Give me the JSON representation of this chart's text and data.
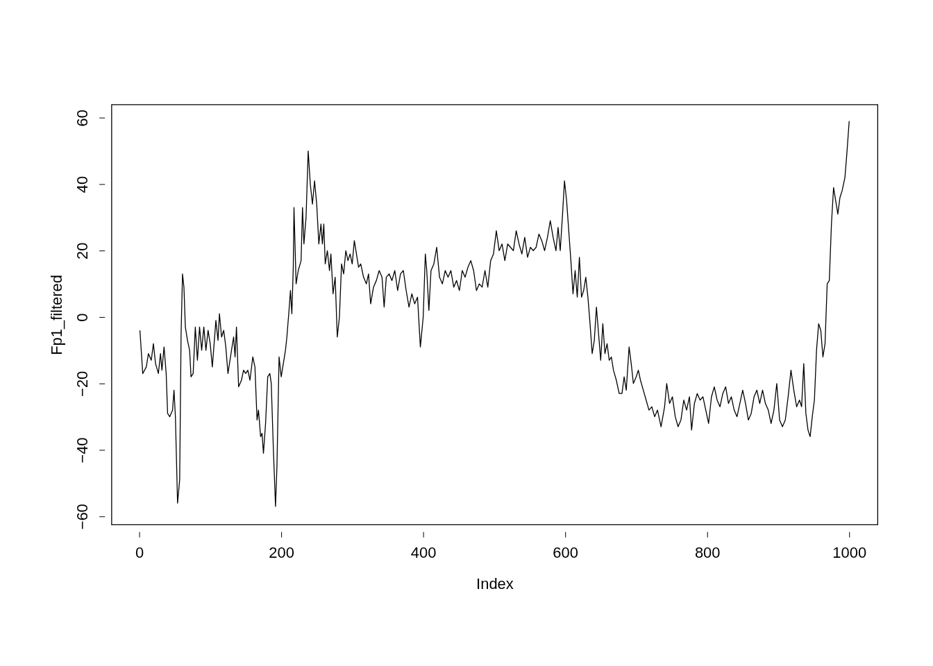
{
  "chart_data": {
    "type": "line",
    "xlabel": "Index",
    "ylabel": "Fp1_filtered",
    "xlim": [
      -39,
      1040
    ],
    "ylim": [
      -62.5,
      64
    ],
    "xticks": [
      0,
      200,
      400,
      600,
      800,
      1000
    ],
    "yticks": [
      -60,
      -40,
      -20,
      0,
      20,
      40,
      60
    ],
    "grid": false,
    "legend": false,
    "marker": "none",
    "line_style": "solid",
    "series": [
      {
        "color": "#000000",
        "x": [
          1,
          5,
          10,
          13,
          17,
          20,
          23,
          27,
          30,
          32,
          35,
          38,
          40,
          43,
          47,
          49,
          51,
          54,
          57,
          59,
          61,
          63,
          65,
          68,
          71,
          73,
          76,
          79,
          82,
          85,
          88,
          91,
          94,
          97,
          100,
          103,
          108,
          111,
          113,
          116,
          119,
          122,
          125,
          130,
          133,
          135,
          137,
          140,
          144,
          147,
          150,
          153,
          156,
          160,
          163,
          166,
          168,
          171,
          173,
          175,
          178,
          181,
          184,
          186,
          189,
          192,
          194,
          197,
          200,
          203,
          206,
          208,
          211,
          213,
          215,
          217,
          218,
          221,
          224,
          228,
          230,
          232,
          235,
          238,
          241,
          244,
          247,
          250,
          253,
          256,
          258,
          260,
          262,
          265,
          268,
          270,
          273,
          276,
          279,
          282,
          285,
          288,
          291,
          294,
          297,
          300,
          303,
          306,
          309,
          312,
          316,
          320,
          323,
          326,
          330,
          334,
          338,
          342,
          345,
          348,
          352,
          356,
          360,
          364,
          368,
          372,
          376,
          380,
          384,
          388,
          392,
          396,
          400,
          403,
          405,
          408,
          411,
          415,
          419,
          423,
          427,
          431,
          435,
          439,
          443,
          447,
          451,
          455,
          459,
          463,
          467,
          471,
          475,
          479,
          483,
          487,
          491,
          495,
          499,
          503,
          507,
          511,
          515,
          519,
          523,
          527,
          531,
          535,
          539,
          543,
          547,
          551,
          555,
          559,
          563,
          567,
          571,
          575,
          579,
          583,
          587,
          590,
          593,
          596,
          599,
          602,
          605,
          608,
          611,
          614,
          617,
          620,
          623,
          626,
          629,
          632,
          635,
          638,
          641,
          644,
          647,
          650,
          653,
          656,
          659,
          662,
          665,
          668,
          672,
          676,
          680,
          683,
          686,
          690,
          693,
          696,
          700,
          703,
          706,
          710,
          714,
          718,
          722,
          726,
          730,
          735,
          740,
          743,
          747,
          751,
          755,
          759,
          763,
          767,
          771,
          775,
          778,
          782,
          786,
          790,
          794,
          798,
          802,
          806,
          810,
          814,
          818,
          822,
          826,
          830,
          834,
          838,
          842,
          846,
          850,
          854,
          858,
          862,
          866,
          870,
          874,
          878,
          882,
          886,
          890,
          894,
          898,
          902,
          906,
          910,
          914,
          918,
          922,
          926,
          930,
          933,
          936,
          939,
          942,
          945,
          948,
          951,
          954,
          957,
          960,
          963,
          966,
          969,
          972,
          975,
          978,
          981,
          984,
          987,
          990,
          994,
          997,
          1000
        ],
        "values": [
          -4,
          -17,
          -15,
          -11,
          -13,
          -8,
          -14,
          -17,
          -11,
          -16,
          -9,
          -17,
          -29,
          -30,
          -28,
          -22,
          -30,
          -56,
          -49,
          -5,
          13,
          9,
          -3,
          -7,
          -10,
          -18,
          -17,
          -3,
          -13,
          -3,
          -10,
          -3,
          -10,
          -4,
          -8,
          -15,
          -1,
          -7,
          1,
          -6,
          -4,
          -9,
          -17,
          -10,
          -6,
          -12,
          -3,
          -21,
          -19,
          -16,
          -17,
          -16,
          -19,
          -12,
          -15,
          -31,
          -28,
          -36,
          -35,
          -41,
          -32,
          -18,
          -17,
          -20,
          -40,
          -57,
          -45,
          -12,
          -18,
          -14,
          -10,
          -6,
          2,
          8,
          1,
          15,
          33,
          10,
          14,
          17,
          33,
          22,
          30,
          50,
          40,
          34,
          41,
          34,
          22,
          28,
          22,
          28,
          16,
          20,
          14,
          19,
          7,
          12,
          -6,
          0,
          16,
          13,
          20,
          17,
          19,
          16,
          23,
          19,
          15,
          16,
          12,
          10,
          13,
          4,
          9,
          11,
          14,
          12,
          3,
          12,
          13,
          11,
          14,
          8,
          13,
          14,
          8,
          3,
          7,
          4,
          6,
          -9,
          0,
          19,
          14,
          2,
          14,
          16,
          21,
          12,
          10,
          14,
          12,
          14,
          9,
          11,
          8,
          14,
          12,
          15,
          17,
          14,
          8,
          10,
          9,
          14,
          9,
          17,
          19,
          26,
          20,
          22,
          17,
          22,
          21,
          20,
          26,
          22,
          19,
          24,
          18,
          21,
          20,
          21,
          25,
          23,
          20,
          24,
          29,
          24,
          20,
          27,
          20,
          30,
          41,
          35,
          26,
          17,
          7,
          14,
          6,
          18,
          6,
          8,
          12,
          6,
          -2,
          -11,
          -7,
          3,
          -5,
          -13,
          -2,
          -11,
          -8,
          -13,
          -12,
          -16,
          -19,
          -23,
          -23,
          -18,
          -22,
          -9,
          -14,
          -20,
          -18,
          -16,
          -19,
          -22,
          -25,
          -28,
          -27,
          -30,
          -28,
          -33,
          -27,
          -20,
          -26,
          -24,
          -30,
          -33,
          -31,
          -25,
          -28,
          -24,
          -34,
          -26,
          -23,
          -25,
          -24,
          -28,
          -32,
          -24,
          -21,
          -25,
          -27,
          -23,
          -21,
          -26,
          -24,
          -28,
          -30,
          -26,
          -22,
          -26,
          -31,
          -29,
          -24,
          -22,
          -26,
          -22,
          -26,
          -28,
          -32,
          -28,
          -20,
          -31,
          -33,
          -31,
          -24,
          -16,
          -22,
          -27,
          -25,
          -27,
          -14,
          -29,
          -34,
          -36,
          -30,
          -25,
          -10,
          -2,
          -4,
          -12,
          -8,
          10,
          11,
          28,
          39,
          35,
          31,
          36,
          38,
          42,
          50,
          59
        ]
      }
    ]
  }
}
